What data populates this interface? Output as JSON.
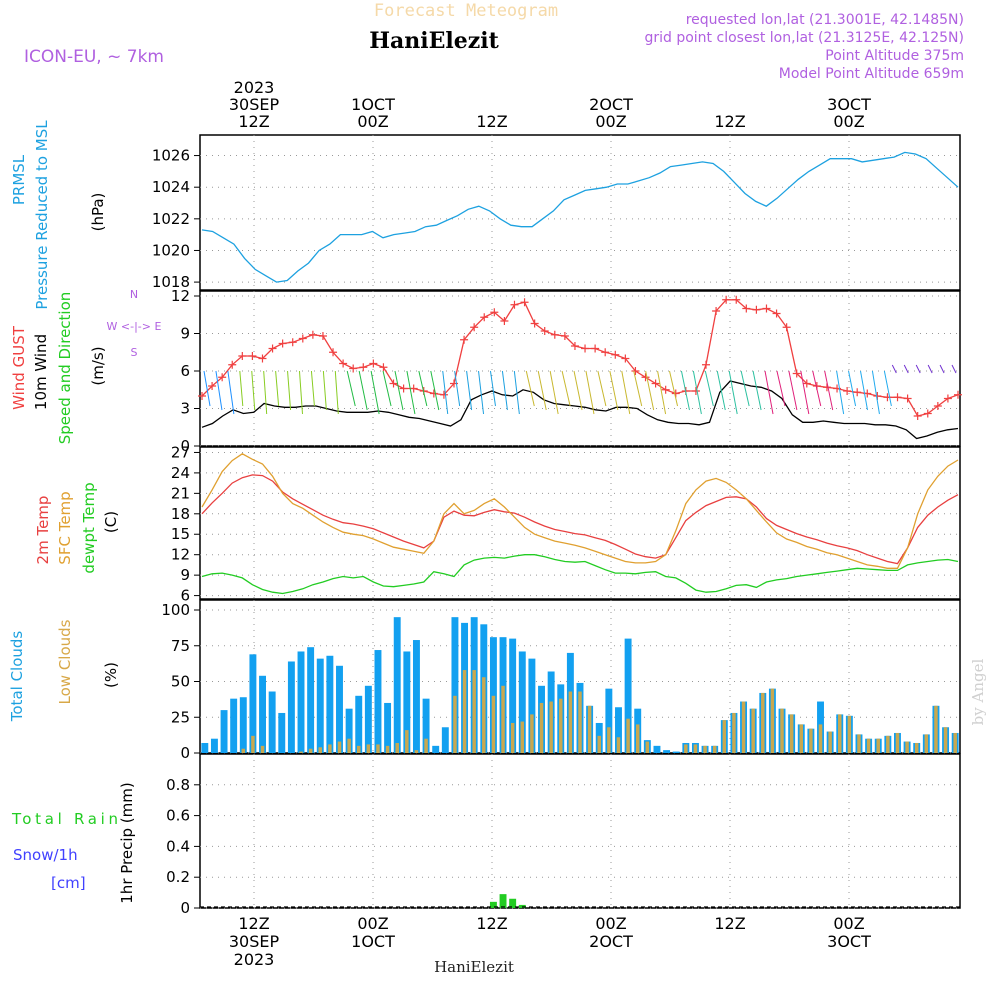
{
  "header": {
    "title": "Forecast Meteogram",
    "location": "HaniElezit",
    "model": "ICON-EU, ~ 7km",
    "requested": "requested lon,lat (21.3001E, 42.1485N)",
    "grid_point": "grid point closest lon,lat (21.3125E, 42.125N)",
    "point_altitude": "Point Altitude 375m",
    "model_altitude": "Model Point Altitude 659m"
  },
  "time_axis": {
    "top_labels": [
      {
        "day": "30SEP",
        "hour": "12Z",
        "year": "2023"
      },
      {
        "day": "1OCT",
        "hour": "00Z",
        "year": ""
      },
      {
        "day": "",
        "hour": "12Z",
        "year": ""
      },
      {
        "day": "2OCT",
        "hour": "00Z",
        "year": ""
      },
      {
        "day": "",
        "hour": "12Z",
        "year": ""
      },
      {
        "day": "3OCT",
        "hour": "00Z",
        "year": ""
      }
    ],
    "bottom_labels": [
      {
        "hour": "12Z",
        "day": "30SEP",
        "year": "2023"
      },
      {
        "hour": "00Z",
        "day": "1OCT",
        "year": ""
      },
      {
        "hour": "12Z",
        "day": "",
        "year": ""
      },
      {
        "hour": "00Z",
        "day": "2OCT",
        "year": ""
      },
      {
        "hour": "12Z",
        "day": "",
        "year": ""
      },
      {
        "hour": "00Z",
        "day": "3OCT",
        "year": ""
      }
    ]
  },
  "footer": {
    "location": "HaniElezit",
    "watermark": "by Angel"
  },
  "colors": {
    "pressure": "#1da1e0",
    "gust": "#f04040",
    "wind": "#000000",
    "t2m": "#e84040",
    "sfc": "#e0a030",
    "dew": "#22cc22",
    "total_cloud": "#12a0f0",
    "low_cloud": "#c8a850",
    "rain": "#22cc22",
    "snow": "#4040ff",
    "purple": "#b060e0"
  },
  "chart_data": [
    {
      "type": "line",
      "panel": "pressure",
      "ylabel": [
        "PRMSL",
        "Pressure Reduced to MSL",
        "(hPa)"
      ],
      "ylim": [
        1017.5,
        1027.3
      ],
      "yticks": [
        1018,
        1020,
        1022,
        1024,
        1026
      ],
      "series": [
        {
          "name": "PRMSL",
          "values": [
            1021.3,
            1021.2,
            1020.8,
            1020.4,
            1019.5,
            1018.8,
            1018.4,
            1018.0,
            1018.1,
            1018.7,
            1019.2,
            1020.0,
            1020.4,
            1021.0,
            1021.0,
            1021.0,
            1021.2,
            1020.8,
            1021.0,
            1021.1,
            1021.2,
            1021.5,
            1021.6,
            1021.9,
            1022.2,
            1022.6,
            1022.8,
            1022.5,
            1022.0,
            1021.6,
            1021.5,
            1021.5,
            1022.0,
            1022.5,
            1023.2,
            1023.5,
            1023.8,
            1023.9,
            1024.0,
            1024.2,
            1024.2,
            1024.4,
            1024.6,
            1024.9,
            1025.3,
            1025.4,
            1025.5,
            1025.6,
            1025.5,
            1025.0,
            1024.3,
            1023.6,
            1023.1,
            1022.8,
            1023.3,
            1023.9,
            1024.5,
            1025.0,
            1025.4,
            1025.8,
            1025.8,
            1025.8,
            1025.6,
            1025.7,
            1025.8,
            1025.9,
            1026.2,
            1026.1,
            1025.8,
            1025.2,
            1024.6,
            1024.0
          ]
        }
      ]
    },
    {
      "type": "line",
      "panel": "wind",
      "ylabel": [
        "Wind GUST",
        "10m Wind",
        "Speed and Direction",
        "(m/s)"
      ],
      "direction_legend": [
        "N",
        "W <-|-> E",
        "S"
      ],
      "ylim": [
        0,
        12.4
      ],
      "yticks": [
        0,
        3,
        6,
        9,
        12
      ],
      "series": [
        {
          "name": "Wind GUST",
          "values": [
            4.0,
            4.8,
            5.5,
            6.5,
            7.2,
            7.2,
            7.0,
            7.8,
            8.2,
            8.3,
            8.6,
            8.9,
            8.8,
            7.5,
            6.6,
            6.2,
            6.3,
            6.6,
            6.3,
            5.0,
            4.6,
            4.6,
            4.4,
            4.2,
            4.1,
            5.0,
            8.5,
            9.5,
            10.3,
            10.7,
            10.0,
            11.3,
            11.5,
            9.8,
            9.2,
            8.9,
            8.8,
            8.0,
            7.8,
            7.8,
            7.5,
            7.3,
            7.0,
            6.0,
            5.5,
            5.0,
            4.5,
            4.2,
            4.4,
            4.4,
            6.5,
            10.8,
            11.7,
            11.7,
            11.0,
            10.9,
            11.0,
            10.6,
            9.5,
            5.8,
            5.0,
            4.8,
            4.7,
            4.6,
            4.4,
            4.3,
            4.2,
            4.0,
            3.9,
            3.9,
            3.8,
            2.4,
            2.6,
            3.2,
            3.8,
            4.1
          ]
        },
        {
          "name": "10m Wind",
          "values": [
            1.5,
            1.8,
            2.4,
            2.9,
            2.6,
            2.7,
            3.4,
            3.2,
            3.1,
            3.1,
            3.2,
            3.2,
            3.0,
            2.8,
            2.7,
            2.7,
            2.7,
            2.8,
            2.7,
            2.5,
            2.3,
            2.2,
            2.0,
            1.8,
            1.6,
            2.1,
            3.7,
            4.1,
            4.4,
            4.1,
            4.0,
            4.5,
            4.3,
            3.7,
            3.4,
            3.3,
            3.2,
            3.1,
            2.9,
            2.8,
            3.1,
            3.1,
            3.0,
            2.5,
            2.1,
            1.9,
            1.8,
            1.8,
            1.7,
            1.9,
            4.3,
            5.2,
            5.0,
            4.8,
            4.7,
            4.4,
            3.8,
            2.5,
            1.9,
            1.9,
            2.0,
            1.9,
            1.8,
            1.8,
            1.8,
            1.7,
            1.7,
            1.6,
            1.3,
            0.6,
            0.8,
            1.1,
            1.3,
            1.4
          ]
        }
      ]
    },
    {
      "type": "line",
      "panel": "temperature",
      "ylabel": [
        "2m Temp",
        "SFC Temp",
        "dewpt Temp",
        "(C)"
      ],
      "ylim": [
        5.5,
        27.8
      ],
      "yticks": [
        6,
        9,
        12,
        15,
        18,
        21,
        24,
        27
      ],
      "series": [
        {
          "name": "2m Temp",
          "values": [
            18.0,
            19.6,
            21.0,
            22.5,
            23.3,
            23.7,
            23.6,
            22.8,
            21.2,
            20.2,
            19.4,
            18.6,
            17.8,
            17.2,
            16.7,
            16.5,
            16.2,
            15.8,
            15.2,
            14.6,
            14.0,
            13.5,
            13.0,
            14.0,
            17.5,
            18.4,
            17.8,
            17.7,
            18.2,
            18.6,
            18.3,
            18.1,
            17.5,
            16.8,
            16.2,
            15.7,
            15.4,
            15.1,
            14.9,
            14.5,
            14.1,
            13.5,
            12.8,
            12.1,
            11.7,
            11.5,
            12.0,
            14.5,
            17.0,
            18.2,
            19.2,
            19.8,
            20.4,
            20.5,
            20.2,
            19.0,
            17.3,
            16.3,
            15.7,
            15.1,
            14.6,
            14.2,
            13.7,
            13.3,
            13.0,
            12.6,
            12.0,
            11.5,
            11.0,
            10.7,
            13.0,
            16.0,
            17.8,
            19.0,
            20.0,
            20.8
          ]
        },
        {
          "name": "SFC Temp",
          "values": [
            19.0,
            21.5,
            24.2,
            25.8,
            26.8,
            26.0,
            25.3,
            23.5,
            21.0,
            19.5,
            18.8,
            17.8,
            16.8,
            16.0,
            15.3,
            15.0,
            14.8,
            14.3,
            13.7,
            13.1,
            12.8,
            12.5,
            12.2,
            14.0,
            18.0,
            19.5,
            18.0,
            18.5,
            19.5,
            20.2,
            19.0,
            17.5,
            16.0,
            15.0,
            14.5,
            14.0,
            13.7,
            13.4,
            13.0,
            12.5,
            12.0,
            11.5,
            11.0,
            10.8,
            10.8,
            11.0,
            12.0,
            15.5,
            19.5,
            21.5,
            22.8,
            23.2,
            22.6,
            21.5,
            20.2,
            18.5,
            16.8,
            15.2,
            14.3,
            13.8,
            13.2,
            12.8,
            12.3,
            12.0,
            11.5,
            11.0,
            10.5,
            10.3,
            10.0,
            10.0,
            13.0,
            18.0,
            21.5,
            23.5,
            25.0,
            25.9
          ]
        },
        {
          "name": "dewpt Temp",
          "values": [
            8.8,
            9.2,
            9.3,
            9.0,
            8.6,
            7.6,
            6.9,
            6.5,
            6.3,
            6.6,
            7.0,
            7.6,
            8.0,
            8.5,
            8.8,
            8.6,
            8.8,
            8.0,
            7.4,
            7.3,
            7.5,
            7.7,
            8.0,
            9.5,
            9.2,
            8.8,
            10.5,
            11.2,
            11.5,
            11.6,
            11.5,
            11.8,
            12.0,
            12.0,
            11.7,
            11.3,
            11.0,
            10.9,
            11.0,
            10.4,
            9.8,
            9.3,
            9.3,
            9.2,
            9.4,
            9.5,
            8.8,
            8.6,
            7.8,
            6.8,
            6.5,
            6.6,
            7.0,
            7.5,
            7.6,
            7.2,
            8.0,
            8.3,
            8.5,
            8.8,
            9.0,
            9.2,
            9.4,
            9.6,
            9.8,
            10.0,
            9.9,
            9.8,
            9.7,
            9.7,
            10.5,
            10.8,
            11.0,
            11.2,
            11.3,
            11.0
          ]
        }
      ]
    },
    {
      "type": "bar",
      "panel": "clouds",
      "ylabel": [
        "Total Clouds",
        "Low Clouds",
        "(%)"
      ],
      "ylim": [
        0,
        107
      ],
      "yticks": [
        0,
        25,
        50,
        75,
        100
      ],
      "series": [
        {
          "name": "Total Clouds",
          "values": [
            7,
            10,
            30,
            38,
            39,
            69,
            54,
            43,
            28,
            64,
            71,
            74,
            66,
            68,
            61,
            31,
            40,
            47,
            72,
            35,
            95,
            71,
            79,
            38,
            5,
            18,
            95,
            91,
            95,
            90,
            81,
            81,
            80,
            71,
            66,
            47,
            57,
            48,
            70,
            49,
            33,
            21,
            45,
            32,
            80,
            31,
            9,
            5,
            2,
            1,
            7,
            7,
            5,
            5,
            23,
            28,
            36,
            31,
            42,
            45,
            31,
            27,
            20,
            17,
            36,
            15,
            27,
            26,
            13,
            10,
            10,
            12,
            14,
            8,
            7,
            13,
            33,
            18,
            14
          ]
        },
        {
          "name": "Low Clouds",
          "values": [
            0,
            0,
            0,
            0,
            3,
            12,
            5,
            0,
            0,
            0,
            1,
            3,
            4,
            6,
            8,
            10,
            5,
            6,
            6,
            5,
            7,
            16,
            2,
            10,
            0,
            0,
            40,
            58,
            58,
            53,
            40,
            47,
            21,
            22,
            27,
            35,
            36,
            38,
            43,
            43,
            33,
            12,
            18,
            11,
            24,
            20,
            8,
            0,
            0,
            0,
            6,
            6,
            5,
            5,
            23,
            28,
            36,
            31,
            42,
            45,
            31,
            27,
            20,
            17,
            20,
            15,
            27,
            26,
            13,
            10,
            10,
            12,
            14,
            8,
            7,
            13,
            33,
            18,
            14
          ]
        }
      ]
    },
    {
      "type": "bar",
      "panel": "precip",
      "ylabel": [
        "Total Rain",
        "Snow/1h",
        "[cm]",
        "1hr Precip (mm)"
      ],
      "ylim": [
        0,
        1.0
      ],
      "yticks": [
        0,
        0.2,
        0.4,
        0.6,
        0.8
      ],
      "series": [
        {
          "name": "Total Rain",
          "values": [
            0,
            0,
            0,
            0,
            0,
            0,
            0,
            0,
            0,
            0,
            0,
            0,
            0,
            0,
            0,
            0,
            0,
            0,
            0,
            0,
            0,
            0,
            0,
            0,
            0,
            0,
            0,
            0,
            0,
            0,
            0.04,
            0.09,
            0.06,
            0.02,
            0,
            0,
            0,
            0,
            0,
            0,
            0,
            0,
            0,
            0,
            0,
            0,
            0,
            0,
            0,
            0,
            0,
            0,
            0,
            0,
            0,
            0,
            0,
            0,
            0,
            0,
            0,
            0,
            0,
            0,
            0,
            0,
            0,
            0,
            0,
            0,
            0,
            0,
            0,
            0,
            0,
            0,
            0,
            0,
            0
          ]
        }
      ]
    }
  ]
}
